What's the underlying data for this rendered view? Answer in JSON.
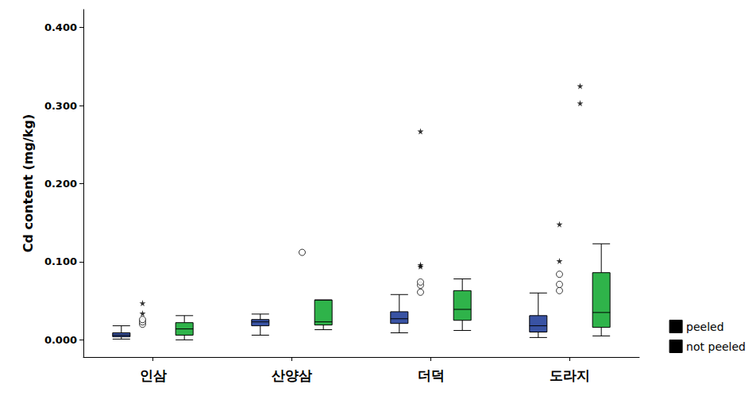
{
  "chart_data": {
    "type": "boxplot",
    "y_label": "Cd content (mg/kg)",
    "categories": [
      "인삼",
      "산양삼",
      "더덕",
      "도라지"
    ],
    "series": [
      {
        "name": "peeled",
        "color": "#3953a4",
        "values": [
          [
            0.001,
            0.004,
            0.006,
            0.009,
            0.018
          ],
          [
            0.006,
            0.018,
            0.023,
            0.026,
            0.033
          ],
          [
            0.009,
            0.021,
            0.027,
            0.036,
            0.058
          ],
          [
            0.003,
            0.01,
            0.018,
            0.031,
            0.06
          ]
        ],
        "outliers": [
          [
            0.02,
            0.023,
            0.026
          ],
          [],
          [
            0.061,
            0.07,
            0.074
          ],
          [
            0.063,
            0.071,
            0.084
          ]
        ],
        "extremes": [
          [
            0.034,
            0.047
          ],
          [],
          [
            0.094,
            0.096,
            0.267
          ],
          [
            0.101,
            0.148
          ]
        ]
      },
      {
        "name": "not peeled",
        "color": "#2fb34a",
        "values": [
          [
            0.0,
            0.006,
            0.014,
            0.022,
            0.031
          ],
          [
            0.013,
            0.019,
            0.023,
            0.051,
            0.051
          ],
          [
            0.012,
            0.025,
            0.039,
            0.063,
            0.078
          ],
          [
            0.005,
            0.016,
            0.035,
            0.086,
            0.123
          ]
        ],
        "outliers": [
          [],
          [
            0.112
          ],
          [],
          []
        ],
        "extremes": [
          [],
          [],
          [],
          [
            0.303,
            0.325
          ]
        ]
      }
    ],
    "ylim": [
      -0.022,
      0.423
    ],
    "yticks": [
      {
        "value": 0,
        "label": "0.000"
      },
      {
        "value": 0.1,
        "label": "0.100"
      },
      {
        "value": 0.2,
        "label": "0.200"
      },
      {
        "value": 0.3,
        "label": "0.300"
      },
      {
        "value": 0.4,
        "label": "0.400"
      }
    ],
    "grid": false,
    "legend": "lower right"
  }
}
